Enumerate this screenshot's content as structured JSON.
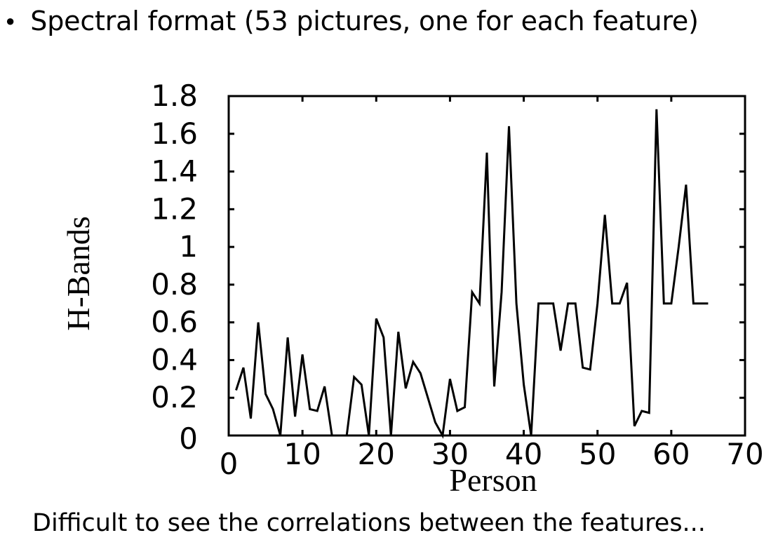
{
  "slide": {
    "bullet": "Spectral format (53 pictures, one for each feature)",
    "caption": "Difficult to see the correlations between the features..."
  },
  "chart_data": {
    "type": "line",
    "xlabel": "Person",
    "ylabel": "H-Bands",
    "xlim": [
      0,
      70
    ],
    "ylim": [
      0,
      1.8
    ],
    "xticks": [
      0,
      10,
      20,
      30,
      40,
      50,
      60,
      70
    ],
    "xtick_labels": [
      "0",
      "10",
      "20",
      "30",
      "40",
      "50",
      "60",
      "70"
    ],
    "yticks": [
      0,
      0.2,
      0.4,
      0.6,
      0.8,
      1.0,
      1.2,
      1.4,
      1.6,
      1.8
    ],
    "ytick_labels": [
      "0",
      "0.2",
      "0.4",
      "0.6",
      "0.8",
      "1",
      "1.2",
      "1.4",
      "1.6",
      "1.8"
    ],
    "grid": false,
    "line_color": "#000000",
    "series": [
      {
        "x": [
          1,
          2,
          3,
          4,
          5,
          6,
          7,
          8,
          9,
          10,
          11,
          12,
          13,
          14,
          15,
          16,
          17,
          18,
          19,
          20,
          21,
          22,
          23,
          24,
          25,
          26,
          27,
          28,
          29,
          30,
          31,
          32,
          33,
          34,
          35,
          36,
          37,
          38,
          39,
          40,
          41,
          42,
          43,
          44,
          45,
          46,
          47,
          48,
          49,
          50,
          51,
          52,
          53,
          54,
          55,
          56,
          57,
          58,
          59,
          60,
          61,
          62,
          63,
          64,
          65
        ],
        "y": [
          0.24,
          0.36,
          0.09,
          0.6,
          0.22,
          0.14,
          0.0,
          0.52,
          0.1,
          0.43,
          0.14,
          0.13,
          0.26,
          0.0,
          0.0,
          0.0,
          0.31,
          0.27,
          0.0,
          0.62,
          0.52,
          0.0,
          0.55,
          0.25,
          0.39,
          0.33,
          0.2,
          0.07,
          0.0,
          0.3,
          0.13,
          0.15,
          0.76,
          0.7,
          1.5,
          0.26,
          0.76,
          1.64,
          0.7,
          0.27,
          0.0,
          0.7,
          0.7,
          0.7,
          0.45,
          0.7,
          0.7,
          0.36,
          0.35,
          0.7,
          1.17,
          0.7,
          0.7,
          0.81,
          0.05,
          0.13,
          0.12,
          1.73,
          0.7,
          0.7,
          1.0,
          1.33,
          0.7,
          0.7,
          0.7
        ]
      }
    ]
  }
}
